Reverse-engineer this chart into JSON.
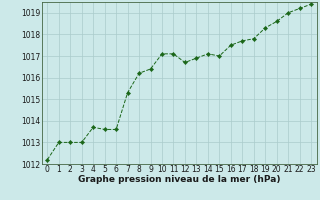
{
  "x": [
    0,
    1,
    2,
    3,
    4,
    5,
    6,
    7,
    8,
    9,
    10,
    11,
    12,
    13,
    14,
    15,
    16,
    17,
    18,
    19,
    20,
    21,
    22,
    23
  ],
  "y": [
    1012.2,
    1013.0,
    1013.0,
    1013.0,
    1013.7,
    1013.6,
    1013.6,
    1015.3,
    1016.2,
    1016.4,
    1017.1,
    1017.1,
    1016.7,
    1016.9,
    1017.1,
    1017.0,
    1017.5,
    1017.7,
    1017.8,
    1018.3,
    1018.6,
    1019.0,
    1019.2,
    1019.4
  ],
  "line_color": "#1a6618",
  "marker": "D",
  "marker_size": 2.2,
  "bg_color": "#cce9e9",
  "grid_color": "#aacccc",
  "xlabel": "Graphe pression niveau de la mer (hPa)",
  "xlabel_fontsize": 6.5,
  "tick_fontsize": 5.5,
  "ylim": [
    1012,
    1019.5
  ],
  "yticks": [
    1012,
    1013,
    1014,
    1015,
    1016,
    1017,
    1018,
    1019
  ],
  "xlim": [
    -0.5,
    23.5
  ],
  "xticks": [
    0,
    1,
    2,
    3,
    4,
    5,
    6,
    7,
    8,
    9,
    10,
    11,
    12,
    13,
    14,
    15,
    16,
    17,
    18,
    19,
    20,
    21,
    22,
    23
  ]
}
